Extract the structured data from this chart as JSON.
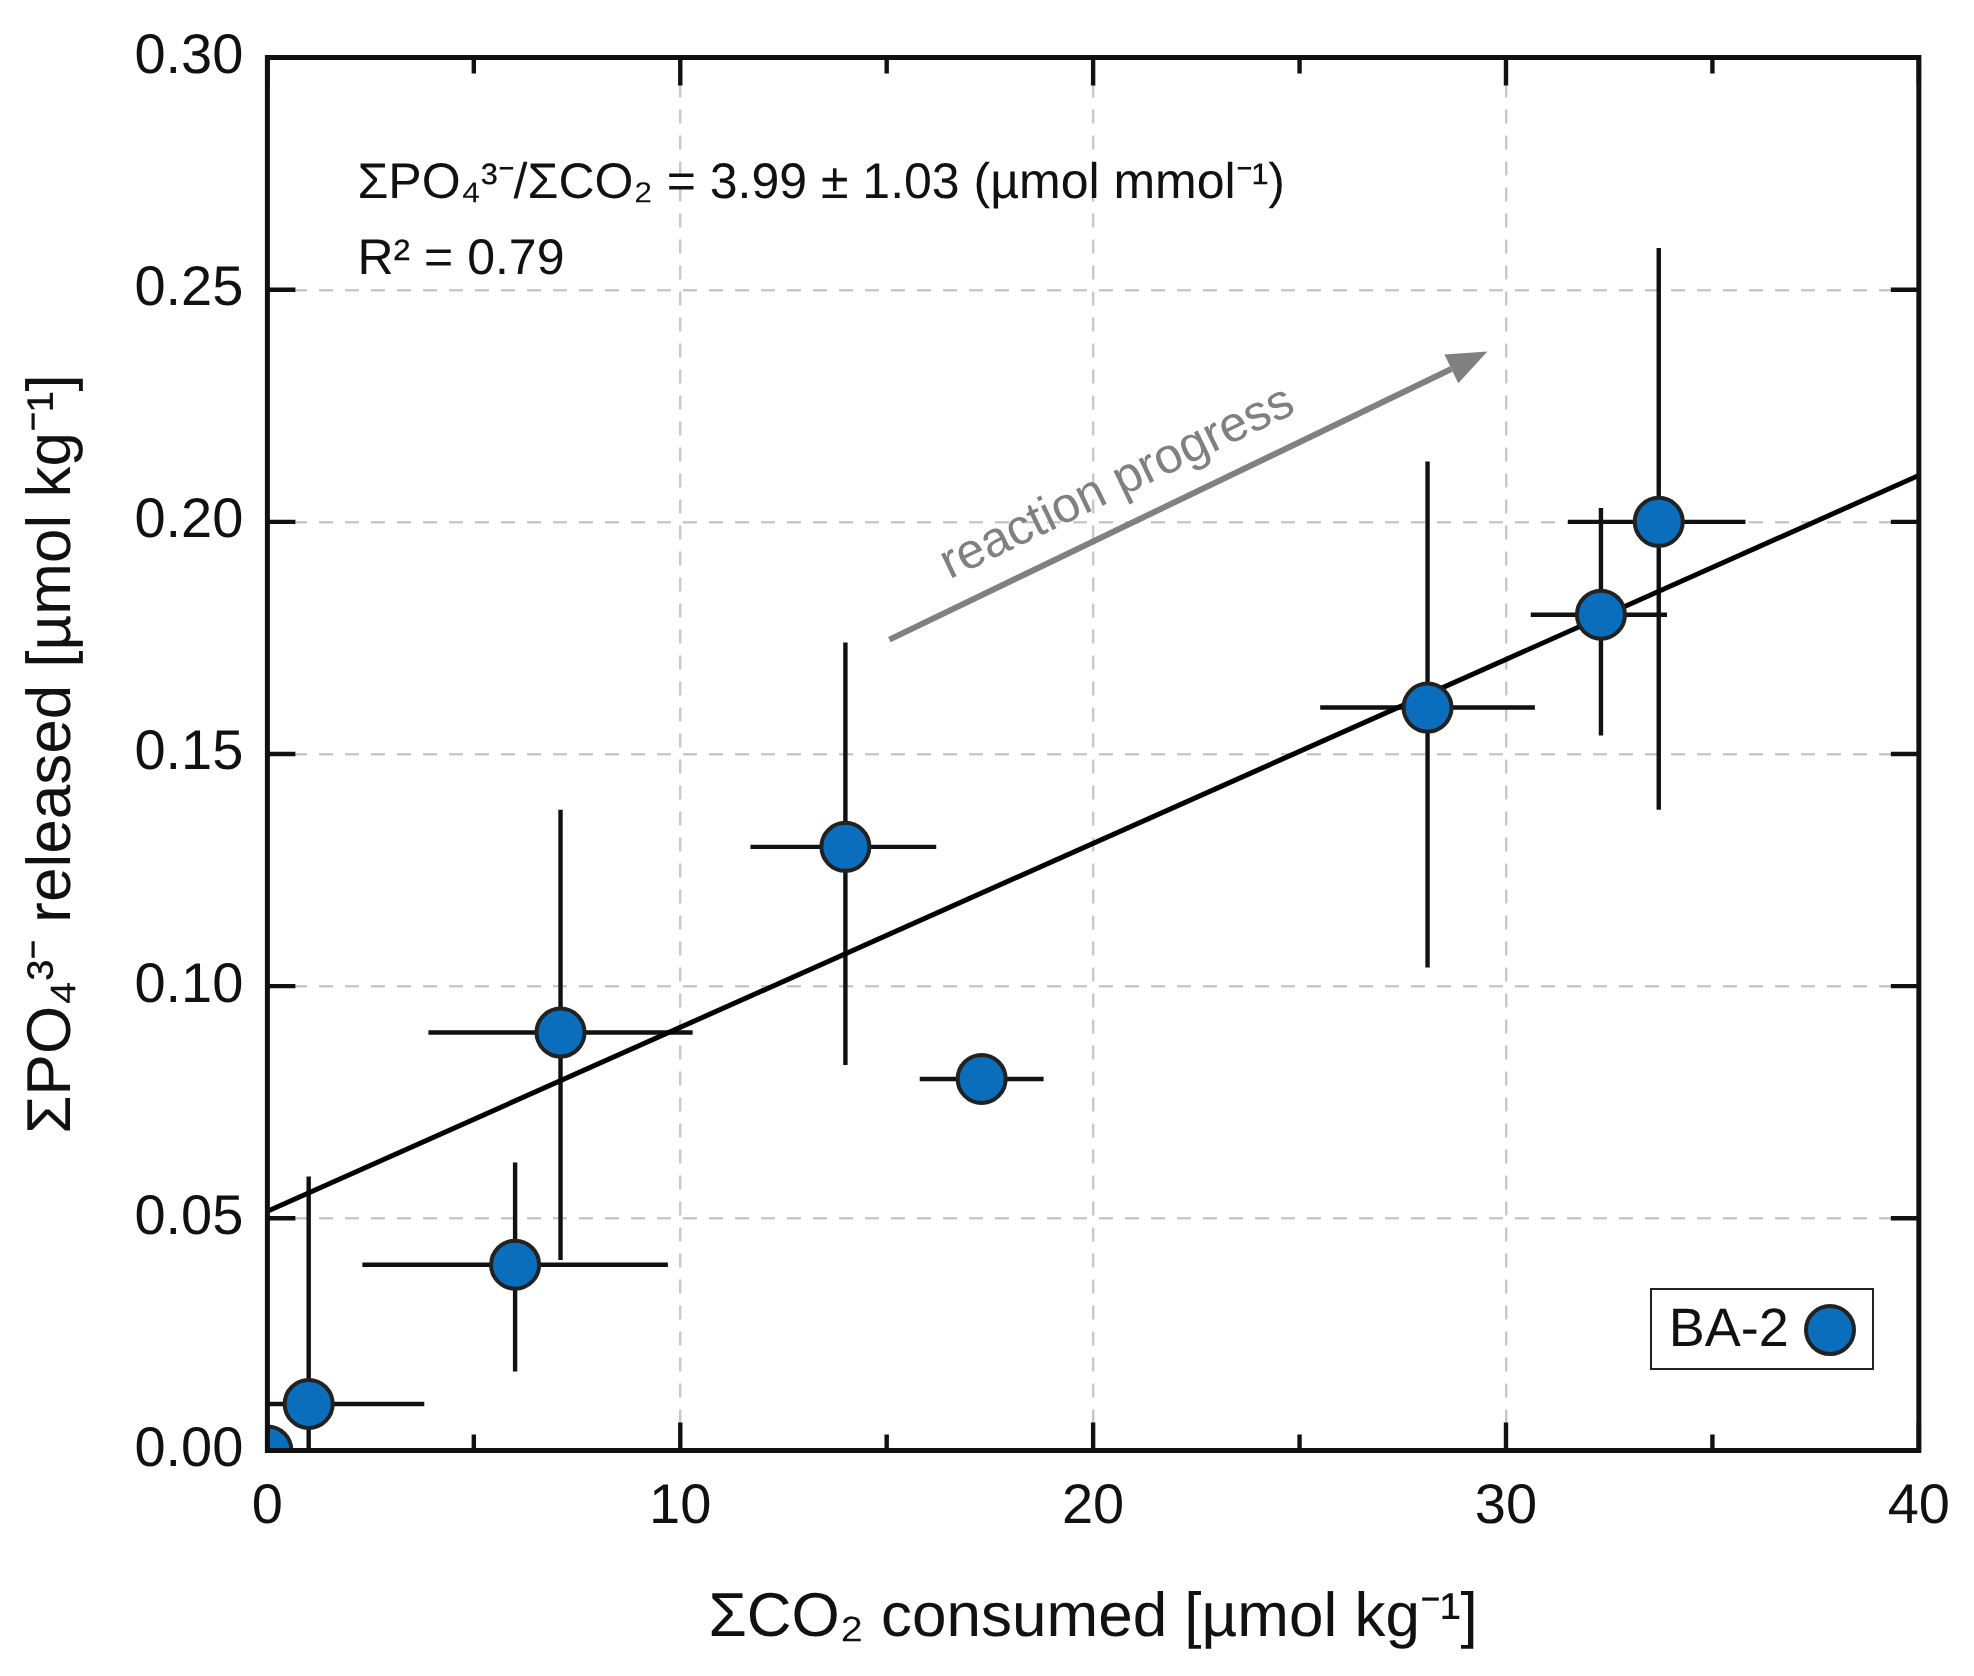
{
  "chart_data": {
    "type": "scatter",
    "xlabel": "ΣCO₂ consumed [µmol kg⁻¹]",
    "ylabel": "ΣPO₄³⁻ released [µmol kg⁻¹]",
    "annotations": [
      "ΣPO₄³⁻/ΣCO₂ = 3.99 ± 1.03 (µmol mmol⁻¹)",
      "R² = 0.79",
      "reaction progress"
    ],
    "xlim": [
      0,
      40
    ],
    "ylim": [
      0,
      0.3
    ],
    "xticks": [
      0,
      {
        "value": 5,
        "label": null
      },
      10,
      {
        "value": 15,
        "label": null
      },
      20,
      {
        "value": 25,
        "label": null
      },
      30,
      {
        "value": 35,
        "label": null
      },
      40
    ],
    "yticks": [
      {
        "value": 0,
        "label": "0.00"
      },
      0.05,
      {
        "value": 0.1,
        "label": "0.10"
      },
      0.15,
      {
        "value": 0.2,
        "label": "0.20"
      },
      0.25,
      {
        "value": 0.3,
        "label": "0.30"
      }
    ],
    "grid": true,
    "legend": "bottom right",
    "series": [
      {
        "name": "BA-2",
        "marker": "circle",
        "color": "#0a6ebd",
        "x": [
          0,
          1.0,
          6.0,
          7.1,
          14.0,
          17.3,
          28.1,
          32.3,
          33.7
        ],
        "values": [
          0,
          0.01,
          0.04,
          0.09,
          0.13,
          0.08,
          0.16,
          0.18,
          0.2
        ],
        "errors": [
          null,
          [
            0,
            0.059
          ],
          [
            0.017,
            0.062
          ],
          [
            0.041,
            0.138
          ],
          [
            0.083,
            0.174
          ],
          null,
          [
            0.104,
            0.213
          ],
          [
            0.154,
            0.203
          ],
          [
            0.138,
            0.259
          ]
        ],
        "xerrors": [
          null,
          [
            0,
            3.8
          ],
          [
            2.3,
            9.7
          ],
          [
            3.9,
            10.3
          ],
          [
            11.7,
            16.2
          ],
          [
            15.8,
            18.8
          ],
          [
            25.5,
            30.7
          ],
          [
            30.6,
            33.9
          ],
          [
            31.5,
            35.8
          ]
        ]
      },
      {
        "type": "line",
        "color": "#000000",
        "x": [
          0,
          40
        ],
        "values": [
          0.0515,
          0.21
        ]
      }
    ]
  }
}
